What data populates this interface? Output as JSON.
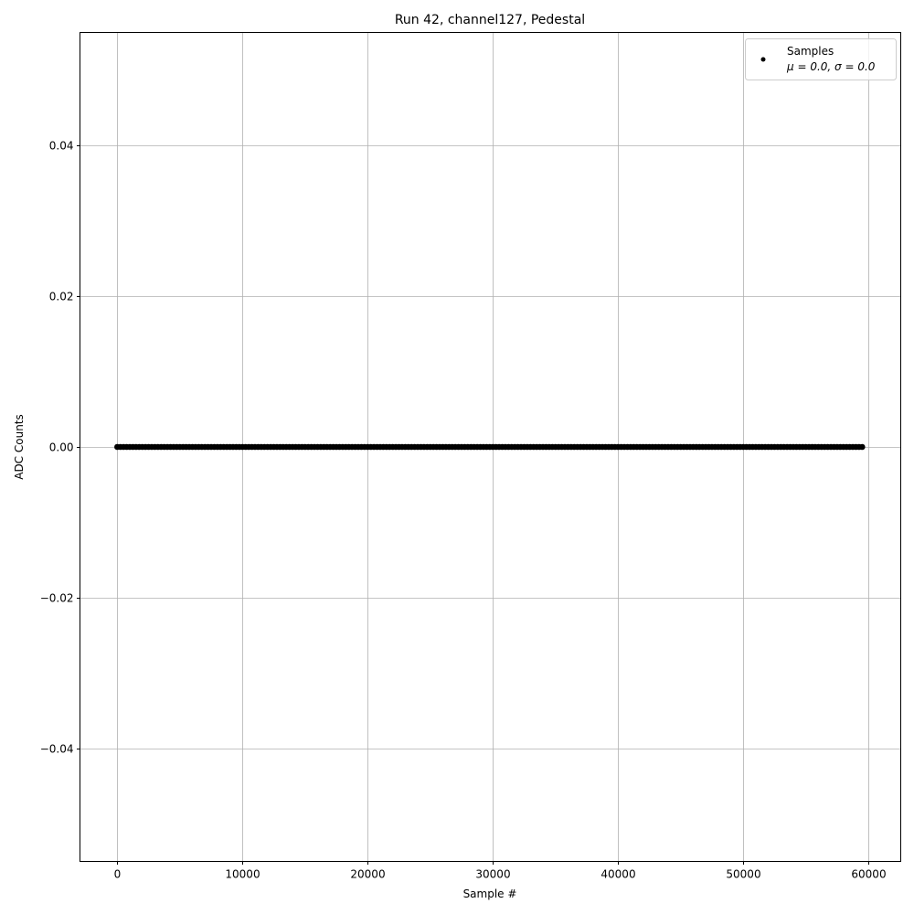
{
  "chart_data": {
    "type": "scatter",
    "title": "Run 42, channel127, Pedestal",
    "xlabel": "Sample #",
    "ylabel": "ADC Counts",
    "xlim": [
      -2980,
      62580
    ],
    "ylim": [
      -0.055,
      0.055
    ],
    "xticks": [
      0,
      10000,
      20000,
      30000,
      40000,
      50000,
      60000
    ],
    "xtick_labels": [
      "0",
      "10000",
      "20000",
      "30000",
      "40000",
      "50000",
      "60000"
    ],
    "yticks": [
      -0.04,
      -0.02,
      0.0,
      0.02,
      0.04
    ],
    "ytick_labels": [
      "−0.04",
      "−0.02",
      "0.00",
      "0.02",
      "0.04"
    ],
    "grid": true,
    "legend_placement": "top-right",
    "series": [
      {
        "name": "Samples",
        "stats_label": "μ = 0.0, σ = 0.0",
        "color": "#000000",
        "marker": "point",
        "x_start": 0,
        "x_end": 59600,
        "y_constant": 0.0
      }
    ]
  }
}
